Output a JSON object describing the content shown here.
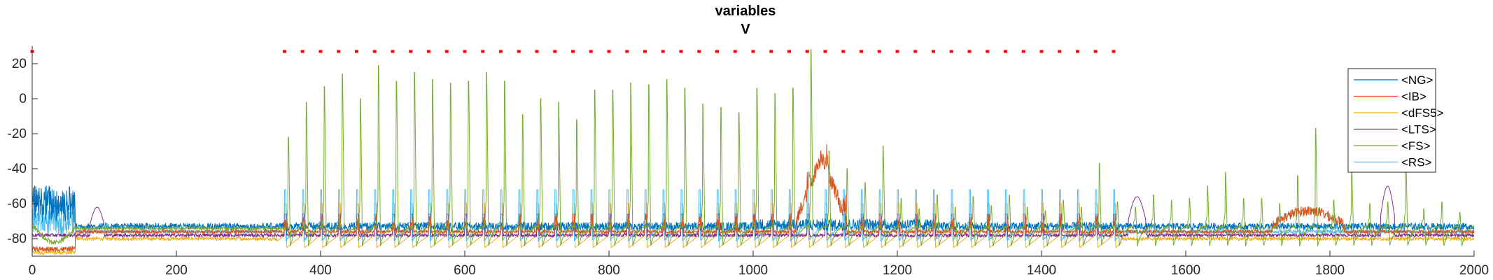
{
  "chart_data": {
    "type": "line",
    "title": "variables",
    "subtitle": "V",
    "xlabel": "",
    "ylabel": "",
    "xlim": [
      0,
      2000
    ],
    "ylim": [
      -90,
      30
    ],
    "xticks": [
      0,
      200,
      400,
      600,
      800,
      1000,
      1200,
      1400,
      1600,
      1800,
      2000
    ],
    "yticks": [
      -80,
      -60,
      -40,
      -20,
      0,
      20
    ],
    "grid": false,
    "legend_position": "top-right",
    "series": [
      {
        "name": "<NG>",
        "color": "#0072BD"
      },
      {
        "name": "<IB>",
        "color": "#D95319"
      },
      {
        "name": "<dFS5>",
        "color": "#EDB120"
      },
      {
        "name": "<LTS>",
        "color": "#7E2F8E"
      },
      {
        "name": "<FS>",
        "color": "#77AC30"
      },
      {
        "name": "<RS>",
        "color": "#4DBEEE"
      }
    ],
    "fs_spike_peaks": [
      {
        "t": 355,
        "v": -22
      },
      {
        "t": 380,
        "v": -2
      },
      {
        "t": 405,
        "v": 7
      },
      {
        "t": 430,
        "v": 14
      },
      {
        "t": 455,
        "v": 0
      },
      {
        "t": 480,
        "v": 19
      },
      {
        "t": 505,
        "v": 10
      },
      {
        "t": 530,
        "v": 15
      },
      {
        "t": 555,
        "v": 11
      },
      {
        "t": 580,
        "v": 9
      },
      {
        "t": 605,
        "v": 10
      },
      {
        "t": 630,
        "v": 15
      },
      {
        "t": 655,
        "v": 10
      },
      {
        "t": 680,
        "v": -9
      },
      {
        "t": 705,
        "v": 0
      },
      {
        "t": 730,
        "v": -2
      },
      {
        "t": 755,
        "v": -12
      },
      {
        "t": 780,
        "v": 5
      },
      {
        "t": 805,
        "v": 5
      },
      {
        "t": 830,
        "v": 9
      },
      {
        "t": 855,
        "v": 8
      },
      {
        "t": 880,
        "v": 11
      },
      {
        "t": 905,
        "v": 6
      },
      {
        "t": 930,
        "v": -3
      },
      {
        "t": 955,
        "v": -5
      },
      {
        "t": 980,
        "v": -8
      },
      {
        "t": 1005,
        "v": 6
      },
      {
        "t": 1030,
        "v": 3
      },
      {
        "t": 1055,
        "v": 6
      },
      {
        "t": 1080,
        "v": 28
      },
      {
        "t": 1105,
        "v": -30
      },
      {
        "t": 1130,
        "v": -40
      },
      {
        "t": 1155,
        "v": -48
      },
      {
        "t": 1180,
        "v": -27
      },
      {
        "t": 1205,
        "v": -57
      },
      {
        "t": 1230,
        "v": -63
      },
      {
        "t": 1255,
        "v": -55
      },
      {
        "t": 1280,
        "v": -62
      },
      {
        "t": 1305,
        "v": -56
      },
      {
        "t": 1330,
        "v": -61
      },
      {
        "t": 1355,
        "v": -55
      },
      {
        "t": 1380,
        "v": -62
      },
      {
        "t": 1405,
        "v": -64
      },
      {
        "t": 1430,
        "v": -58
      },
      {
        "t": 1455,
        "v": -62
      },
      {
        "t": 1480,
        "v": -37
      },
      {
        "t": 1505,
        "v": -59
      },
      {
        "t": 1530,
        "v": -62
      },
      {
        "t": 1555,
        "v": -55
      },
      {
        "t": 1580,
        "v": -58
      },
      {
        "t": 1605,
        "v": -57
      },
      {
        "t": 1630,
        "v": -50
      },
      {
        "t": 1655,
        "v": -42
      },
      {
        "t": 1680,
        "v": -57
      },
      {
        "t": 1705,
        "v": -57
      },
      {
        "t": 1730,
        "v": -60
      },
      {
        "t": 1755,
        "v": -44
      },
      {
        "t": 1780,
        "v": -17
      },
      {
        "t": 1805,
        "v": -58
      },
      {
        "t": 1830,
        "v": -40
      },
      {
        "t": 1855,
        "v": -60
      },
      {
        "t": 1880,
        "v": -59
      },
      {
        "t": 1905,
        "v": -33
      },
      {
        "t": 1930,
        "v": -63
      },
      {
        "t": 1955,
        "v": -59
      },
      {
        "t": 1980,
        "v": -65
      }
    ],
    "stimulus_markers": {
      "color": "#FF0000",
      "v": 27,
      "t": [
        0,
        350,
        375,
        400,
        425,
        450,
        475,
        500,
        525,
        550,
        575,
        600,
        625,
        650,
        675,
        700,
        725,
        750,
        775,
        800,
        825,
        850,
        875,
        900,
        925,
        950,
        975,
        1000,
        1025,
        1050,
        1075,
        1100,
        1125,
        1150,
        1175,
        1200,
        1225,
        1250,
        1275,
        1300,
        1325,
        1350,
        1375,
        1400,
        1425,
        1450,
        1475,
        1500
      ]
    }
  }
}
